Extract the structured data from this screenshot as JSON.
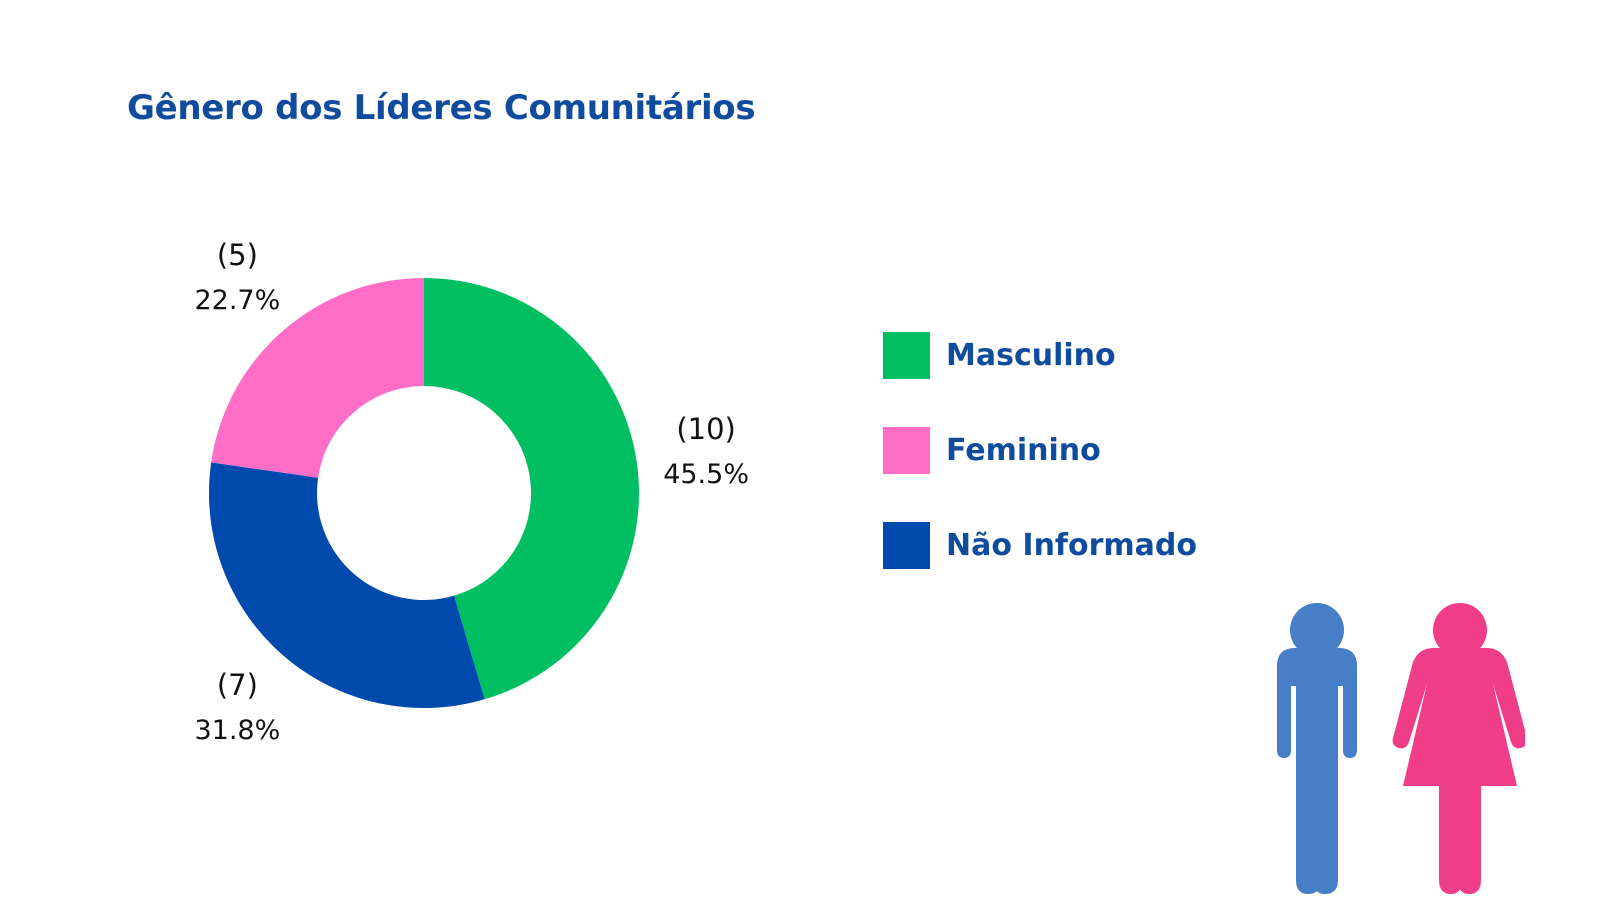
{
  "title": "Gênero dos Líderes Comunitários",
  "chart_data": {
    "type": "pie",
    "donut": true,
    "title": "Gênero dos Líderes Comunitários",
    "series": [
      {
        "name": "Masculino",
        "value": 10,
        "percent_label": "45.5%",
        "count_label": "(10)",
        "color": "#00bf63"
      },
      {
        "name": "Não Informado",
        "value": 7,
        "percent_label": "31.8%",
        "count_label": "(7)",
        "color": "#004aad"
      },
      {
        "name": "Feminino",
        "value": 5,
        "percent_label": "22.7%",
        "count_label": "(5)",
        "color": "#ff6dc7"
      }
    ],
    "legend_position": "right"
  },
  "legend": [
    {
      "label": "Masculino",
      "color": "#00bf63"
    },
    {
      "label": "Feminino",
      "color": "#ff6dc7"
    },
    {
      "label": "Não Informado",
      "color": "#004aad"
    }
  ],
  "illustration": {
    "male_icon_color": "#467fc7",
    "female_icon_color": "#f03d87"
  }
}
